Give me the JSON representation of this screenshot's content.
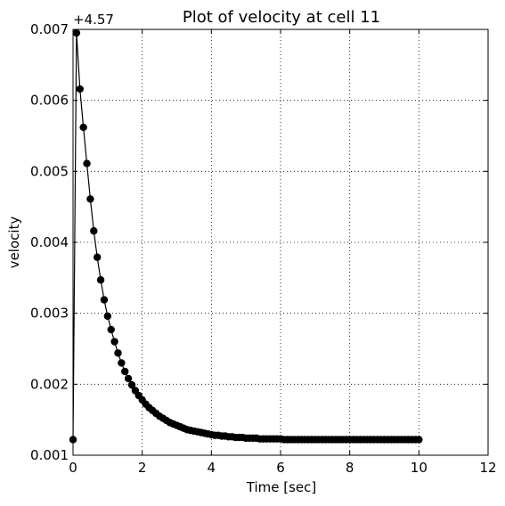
{
  "chart_data": {
    "type": "line",
    "title": "Plot of velocity at cell 11",
    "xlabel": "Time [sec]",
    "ylabel": "velocity",
    "offset_label": "+4.57",
    "xlim": [
      0,
      12
    ],
    "ylim": [
      0.001,
      0.007
    ],
    "x_ticks": [
      0,
      2,
      4,
      6,
      8,
      10,
      12
    ],
    "x_tick_labels": [
      "0",
      "2",
      "4",
      "6",
      "8",
      "10",
      "12"
    ],
    "y_ticks": [
      0.001,
      0.002,
      0.003,
      0.004,
      0.005,
      0.006,
      0.007
    ],
    "y_tick_labels": [
      "0.001",
      "0.002",
      "0.003",
      "0.004",
      "0.005",
      "0.006",
      "0.007"
    ],
    "grid": true,
    "series": [
      {
        "color": "#000000",
        "marker": "circle",
        "x": [
          0,
          0.1,
          0.2,
          0.3,
          0.4,
          0.5,
          0.6,
          0.7,
          0.8,
          0.9,
          1.0,
          1.1,
          1.2,
          1.3,
          1.4,
          1.5,
          1.6,
          1.7,
          1.8,
          1.9,
          2.0,
          2.1,
          2.2,
          2.3,
          2.4,
          2.5,
          2.6,
          2.7,
          2.8,
          2.9,
          3.0,
          3.1,
          3.2,
          3.3,
          3.4,
          3.5,
          3.6,
          3.7,
          3.8,
          3.9,
          4.0,
          4.1,
          4.2,
          4.3,
          4.4,
          4.5,
          4.6,
          4.7,
          4.8,
          4.9,
          5.0,
          5.1,
          5.2,
          5.3,
          5.4,
          5.5,
          5.6,
          5.7,
          5.8,
          5.9,
          6.0,
          6.1,
          6.2,
          6.3,
          6.4,
          6.5,
          6.6,
          6.7,
          6.8,
          6.9,
          7.0,
          7.1,
          7.2,
          7.3,
          7.4,
          7.5,
          7.6,
          7.7,
          7.8,
          7.9,
          8.0,
          8.1,
          8.2,
          8.3,
          8.4,
          8.5,
          8.6,
          8.7,
          8.8,
          8.9,
          9.0,
          9.1,
          9.2,
          9.3,
          9.4,
          9.5,
          9.6,
          9.7,
          9.8,
          9.9,
          10.0
        ],
        "y": [
          0.00122,
          0.00695,
          0.00616,
          0.00562,
          0.00511,
          0.00461,
          0.00416,
          0.00379,
          0.00347,
          0.00319,
          0.00296,
          0.00277,
          0.0026,
          0.00244,
          0.0023,
          0.00218,
          0.00208,
          0.00199,
          0.00191,
          0.00184,
          0.00178,
          0.00172,
          0.00167,
          0.00163,
          0.00159,
          0.00155,
          0.00152,
          0.00149,
          0.00146,
          0.00144,
          0.00142,
          0.0014,
          0.00138,
          0.00136,
          0.00135,
          0.00134,
          0.00133,
          0.00132,
          0.00131,
          0.0013,
          0.00129,
          0.00128,
          0.00128,
          0.00127,
          0.00127,
          0.00126,
          0.00126,
          0.00125,
          0.00125,
          0.00125,
          0.00124,
          0.00124,
          0.00124,
          0.00124,
          0.00123,
          0.00123,
          0.00123,
          0.00123,
          0.00123,
          0.00123,
          0.00123,
          0.00122,
          0.00122,
          0.00122,
          0.00122,
          0.00122,
          0.00122,
          0.00122,
          0.00122,
          0.00122,
          0.00122,
          0.00122,
          0.00122,
          0.00122,
          0.00122,
          0.00122,
          0.00122,
          0.00122,
          0.00122,
          0.00122,
          0.00122,
          0.00122,
          0.00122,
          0.00122,
          0.00122,
          0.00122,
          0.00122,
          0.00122,
          0.00122,
          0.00122,
          0.00122,
          0.00122,
          0.00122,
          0.00122,
          0.00122,
          0.00122,
          0.00122,
          0.00122,
          0.00122,
          0.00122,
          0.00122
        ]
      }
    ]
  }
}
